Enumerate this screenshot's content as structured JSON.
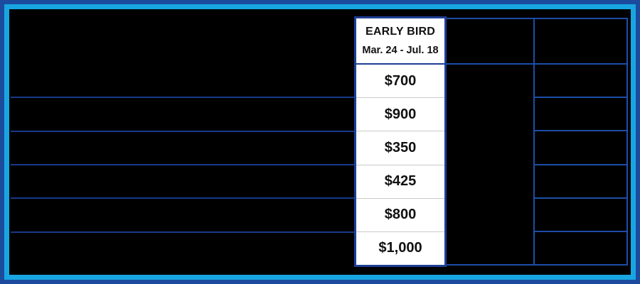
{
  "chart_data": {
    "type": "table",
    "row_count": 6,
    "blank_columns": 3,
    "early_bird_column": {
      "header": "EARLY BIRD",
      "date_range": "Mar. 24 - Jul. 18",
      "prices": [
        "$700",
        "$900",
        "$350",
        "$425",
        "$800",
        "$1,000"
      ]
    }
  },
  "colors": {
    "outer_border": "#1c4b9e",
    "inner_border": "#18a6e3",
    "grid_line_left": "#19398b",
    "grid_line_right": "#1d4ea8",
    "highlight_border": "#1f3f96",
    "row_separator": "#cbcbcb",
    "highlight_bg": "#ffffff",
    "background": "#000000",
    "text": "#111111"
  }
}
